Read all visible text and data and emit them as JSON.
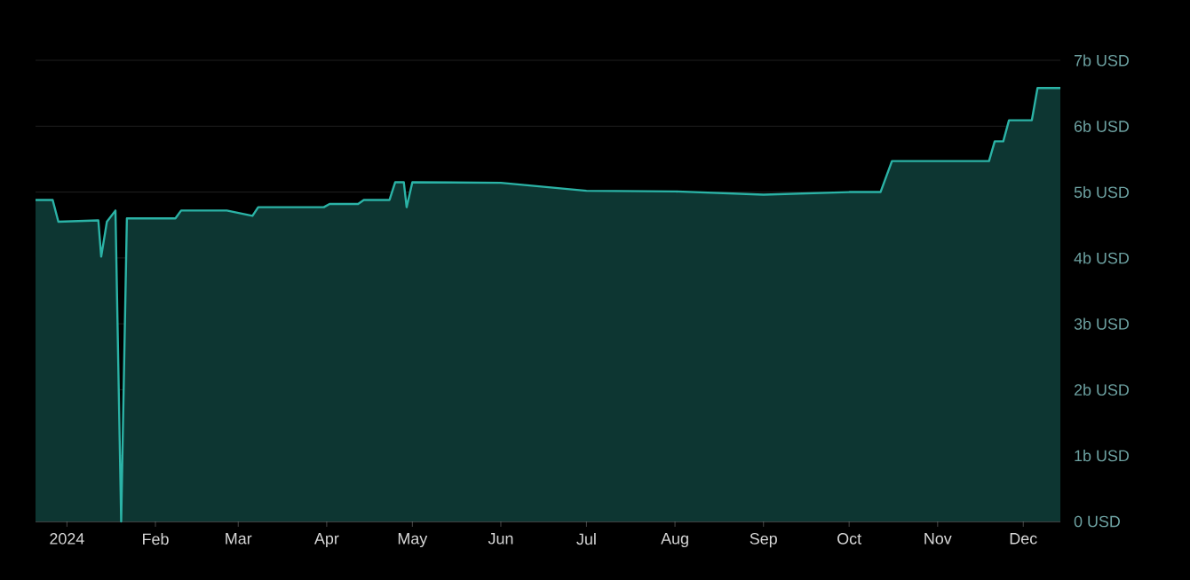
{
  "chart_data": {
    "type": "area",
    "x": [
      "2023-12-21",
      "2023-12-27",
      "2023-12-29",
      "2024-01-12",
      "2024-01-13",
      "2024-01-15",
      "2024-01-18",
      "2024-01-20",
      "2024-01-22",
      "2024-02-08",
      "2024-02-10",
      "2024-02-26",
      "2024-03-06",
      "2024-03-08",
      "2024-03-31",
      "2024-04-02",
      "2024-04-12",
      "2024-04-14",
      "2024-04-23",
      "2024-04-25",
      "2024-04-28",
      "2024-04-29",
      "2024-05-01",
      "2024-06-01",
      "2024-07-01",
      "2024-08-01",
      "2024-09-01",
      "2024-10-01",
      "2024-10-12",
      "2024-10-16",
      "2024-11-19",
      "2024-11-21",
      "2024-11-24",
      "2024-11-26",
      "2024-12-04",
      "2024-12-06",
      "2024-12-14"
    ],
    "series": [
      {
        "color": "#2bb3a6",
        "values": [
          4.88,
          4.88,
          4.55,
          4.57,
          4.02,
          4.55,
          4.72,
          0,
          4.6,
          4.6,
          4.72,
          4.72,
          4.64,
          4.77,
          4.77,
          4.82,
          4.82,
          4.88,
          4.88,
          5.15,
          5.15,
          4.77,
          5.15,
          5.14,
          5.02,
          5.01,
          4.96,
          5.0,
          5.0,
          5.47,
          5.47,
          5.77,
          5.77,
          6.09,
          6.09,
          6.58,
          6.58
        ]
      }
    ],
    "xlim": [
      "2023-12-21",
      "2024-12-14"
    ],
    "xticks": [
      {
        "value": "2024-01-01",
        "label": "2024"
      },
      {
        "value": "2024-02-01",
        "label": "Feb"
      },
      {
        "value": "2024-03-01",
        "label": "Mar"
      },
      {
        "value": "2024-04-01",
        "label": "Apr"
      },
      {
        "value": "2024-05-01",
        "label": "May"
      },
      {
        "value": "2024-06-01",
        "label": "Jun"
      },
      {
        "value": "2024-07-01",
        "label": "Jul"
      },
      {
        "value": "2024-08-01",
        "label": "Aug"
      },
      {
        "value": "2024-09-01",
        "label": "Sep"
      },
      {
        "value": "2024-10-01",
        "label": "Oct"
      },
      {
        "value": "2024-11-01",
        "label": "Nov"
      },
      {
        "value": "2024-12-01",
        "label": "Dec"
      }
    ],
    "ylim": [
      0,
      7
    ],
    "yticks": [
      {
        "value": 0,
        "label": "0 USD"
      },
      {
        "value": 1,
        "label": "1b USD"
      },
      {
        "value": 2,
        "label": "2b USD"
      },
      {
        "value": 3,
        "label": "3b USD"
      },
      {
        "value": 4,
        "label": "4b USD"
      },
      {
        "value": 5,
        "label": "5b USD"
      },
      {
        "value": 6,
        "label": "6b USD"
      },
      {
        "value": 7,
        "label": "7b USD"
      }
    ],
    "grid": "y"
  }
}
